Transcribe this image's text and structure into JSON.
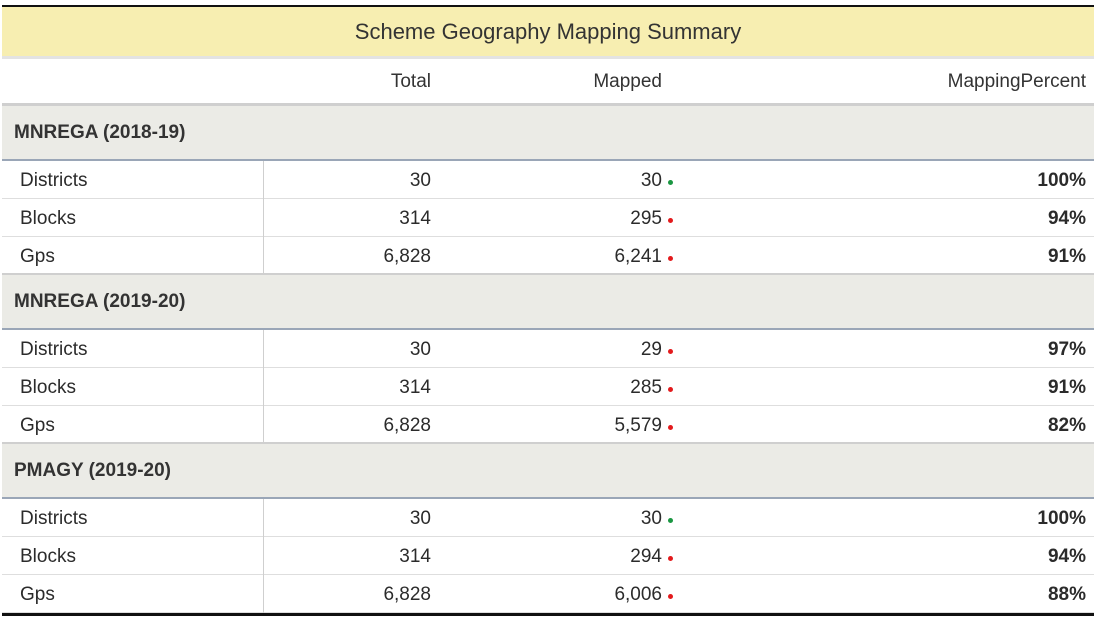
{
  "title": "Scheme Geography Mapping Summary",
  "columns": {
    "total": "Total",
    "mapped": "Mapped",
    "pct": "MappingPercent"
  },
  "colors": {
    "ok": "#1a9641",
    "warn": "#e31a1c",
    "header_bg": "#f7eeb1"
  },
  "groups": [
    {
      "name": "MNREGA (2018-19)",
      "rows": [
        {
          "label": "Districts",
          "total": "30",
          "mapped": "30",
          "status": "ok",
          "pct": "100%"
        },
        {
          "label": "Blocks",
          "total": "314",
          "mapped": "295",
          "status": "warn",
          "pct": "94%"
        },
        {
          "label": "Gps",
          "total": "6,828",
          "mapped": "6,241",
          "status": "warn",
          "pct": "91%"
        }
      ]
    },
    {
      "name": "MNREGA (2019-20)",
      "rows": [
        {
          "label": "Districts",
          "total": "30",
          "mapped": "29",
          "status": "warn",
          "pct": "97%"
        },
        {
          "label": "Blocks",
          "total": "314",
          "mapped": "285",
          "status": "warn",
          "pct": "91%"
        },
        {
          "label": "Gps",
          "total": "6,828",
          "mapped": "5,579",
          "status": "warn",
          "pct": "82%"
        }
      ]
    },
    {
      "name": "PMAGY (2019-20)",
      "rows": [
        {
          "label": "Districts",
          "total": "30",
          "mapped": "30",
          "status": "ok",
          "pct": "100%"
        },
        {
          "label": "Blocks",
          "total": "314",
          "mapped": "294",
          "status": "warn",
          "pct": "94%"
        },
        {
          "label": "Gps",
          "total": "6,828",
          "mapped": "6,006",
          "status": "warn",
          "pct": "88%"
        }
      ]
    }
  ]
}
